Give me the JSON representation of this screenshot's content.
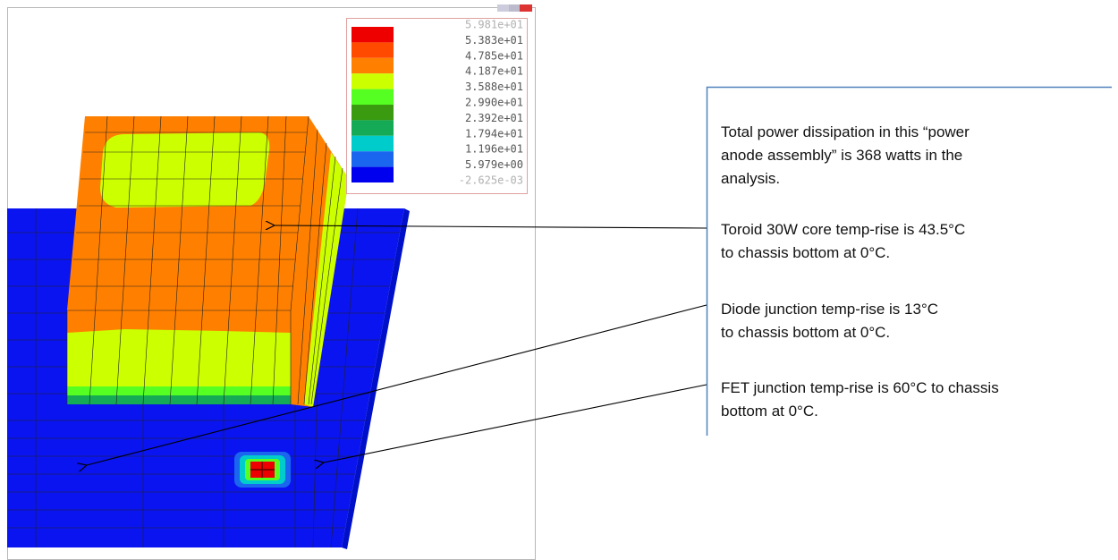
{
  "legend": {
    "labels": [
      "5.981e+01",
      "5.383e+01",
      "4.785e+01",
      "4.187e+01",
      "3.588e+01",
      "2.990e+01",
      "2.392e+01",
      "1.794e+01",
      "1.196e+01",
      "5.979e+00",
      "-2.625e-03"
    ],
    "colors": [
      "#ee0000",
      "#ff4a00",
      "#ff8000",
      "#ccff00",
      "#55ff22",
      "#3a9a10",
      "#15aa55",
      "#00cccc",
      "#1a66ee",
      "#0000ee"
    ]
  },
  "annotations": [
    [
      "Total power dissipation in this “power",
      "anode assembly” is 368 watts in the",
      "analysis."
    ],
    [
      "Toroid 30W core temp-rise is 43.5°C",
      "to chassis bottom at 0°C."
    ],
    [
      "Diode junction temp-rise is 13°C",
      "to chassis bottom at 0°C."
    ],
    [
      "FET junction temp-rise is 60°C to chassis",
      "bottom at 0°C."
    ]
  ]
}
